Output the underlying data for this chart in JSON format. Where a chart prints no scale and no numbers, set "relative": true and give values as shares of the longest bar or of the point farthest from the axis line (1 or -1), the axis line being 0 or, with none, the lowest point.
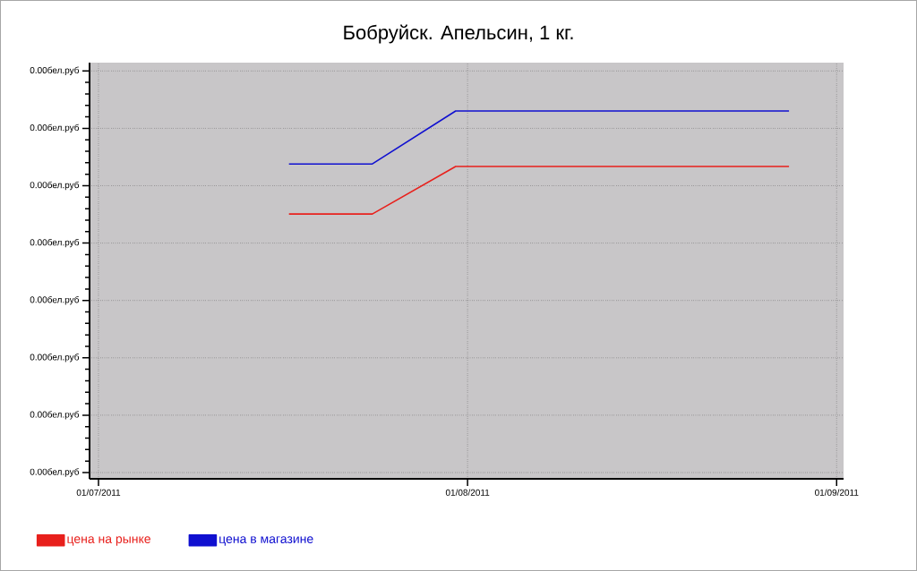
{
  "chart_data": {
    "type": "line",
    "title": "Бобруйск. Апельсин, 1 кг.",
    "relative": true,
    "x": [
      "2011-07-17",
      "2011-07-24",
      "2011-07-31",
      "2011-08-28"
    ],
    "series": [
      {
        "name": "цена на рынке",
        "color": "#e8201c",
        "values": [
          0.72,
          0.72,
          0.849,
          0.849
        ]
      },
      {
        "name": "цена в магазине",
        "color": "#1010d0",
        "values": [
          0.856,
          0.856,
          1,
          1
        ]
      }
    ],
    "xlim": [
      "2011-06-30T06:00",
      "2011-09-01T14:00"
    ],
    "xticks": [
      {
        "value": "2011-07-01",
        "label": "01/07/2011"
      },
      {
        "value": "2011-08-01",
        "label": "01/08/2011"
      },
      {
        "value": "2011-09-01",
        "label": "01/09/2011"
      }
    ],
    "annotations": [
      "0.00бел.руб",
      "0.00бел.руб",
      "0.00бел.руб",
      "0.00бел.руб",
      "0.00бел.руб",
      "0.00бел.руб",
      "0.00бел.руб",
      "0.00бел.руб"
    ],
    "grid": true,
    "legend": "bottom left"
  }
}
